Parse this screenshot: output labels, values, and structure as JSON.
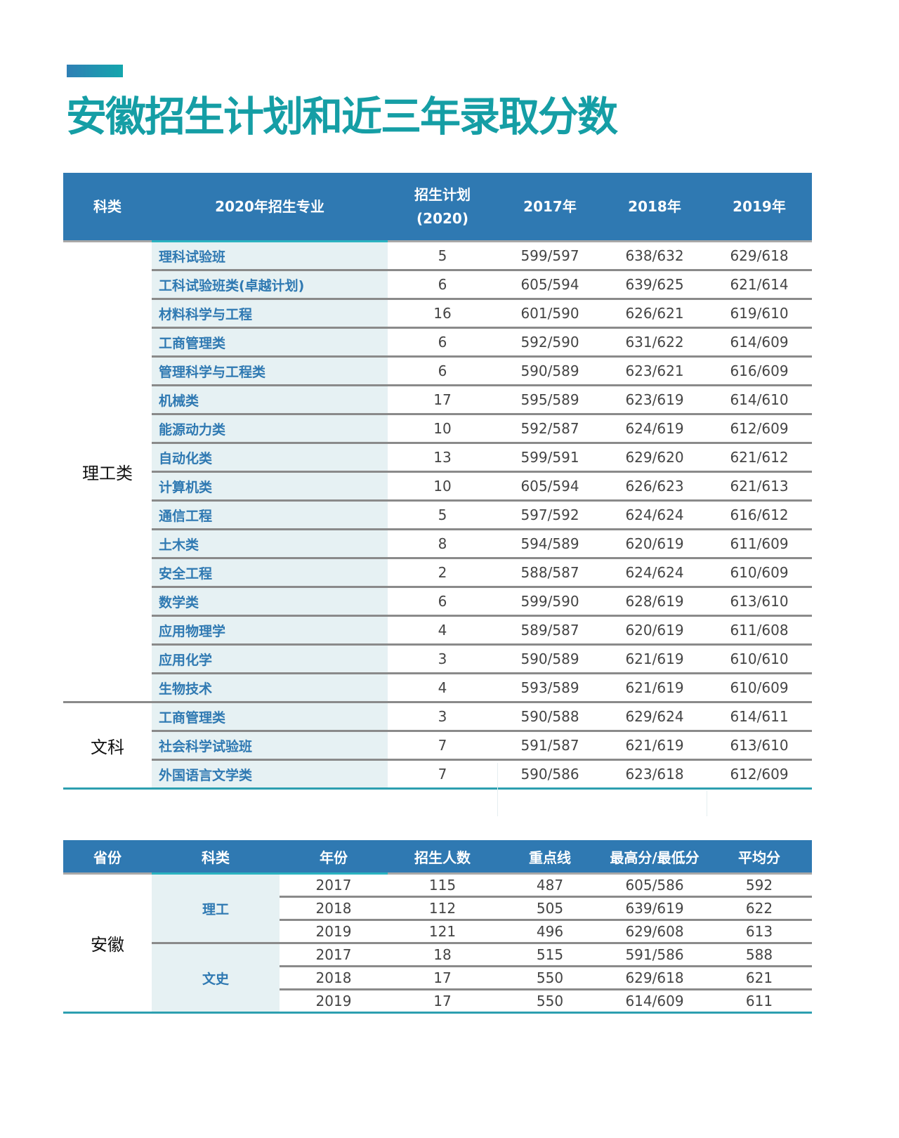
{
  "page": {
    "title": "安徽招生计划和近三年录取分数",
    "accent_color": "#159ea5",
    "header_color": "#2f79b2"
  },
  "plan_table": {
    "headers": [
      "科类",
      "2020年招生专业",
      "招生计划",
      "(2020)",
      "2017年",
      "2018年",
      "2019年"
    ],
    "groups": [
      {
        "category": "理工类",
        "rows": [
          {
            "major": "理科试验班",
            "plan": "5",
            "y2017": "599/597",
            "y2018": "638/632",
            "y2019": "629/618"
          },
          {
            "major": "工科试验班类(卓越计划)",
            "plan": "6",
            "y2017": "605/594",
            "y2018": "639/625",
            "y2019": "621/614"
          },
          {
            "major": "材料科学与工程",
            "plan": "16",
            "y2017": "601/590",
            "y2018": "626/621",
            "y2019": "619/610"
          },
          {
            "major": "工商管理类",
            "plan": "6",
            "y2017": "592/590",
            "y2018": "631/622",
            "y2019": "614/609"
          },
          {
            "major": "管理科学与工程类",
            "plan": "6",
            "y2017": "590/589",
            "y2018": "623/621",
            "y2019": "616/609"
          },
          {
            "major": "机械类",
            "plan": "17",
            "y2017": "595/589",
            "y2018": "623/619",
            "y2019": "614/610"
          },
          {
            "major": "能源动力类",
            "plan": "10",
            "y2017": "592/587",
            "y2018": "624/619",
            "y2019": "612/609"
          },
          {
            "major": "自动化类",
            "plan": "13",
            "y2017": "599/591",
            "y2018": "629/620",
            "y2019": "621/612"
          },
          {
            "major": "计算机类",
            "plan": "10",
            "y2017": "605/594",
            "y2018": "626/623",
            "y2019": "621/613"
          },
          {
            "major": "通信工程",
            "plan": "5",
            "y2017": "597/592",
            "y2018": "624/624",
            "y2019": "616/612"
          },
          {
            "major": "土木类",
            "plan": "8",
            "y2017": "594/589",
            "y2018": "620/619",
            "y2019": "611/609"
          },
          {
            "major": "安全工程",
            "plan": "2",
            "y2017": "588/587",
            "y2018": "624/624",
            "y2019": "610/609"
          },
          {
            "major": "数学类",
            "plan": "6",
            "y2017": "599/590",
            "y2018": "628/619",
            "y2019": "613/610"
          },
          {
            "major": "应用物理学",
            "plan": "4",
            "y2017": "589/587",
            "y2018": "620/619",
            "y2019": "611/608"
          },
          {
            "major": "应用化学",
            "plan": "3",
            "y2017": "590/589",
            "y2018": "621/619",
            "y2019": "610/610"
          },
          {
            "major": "生物技术",
            "plan": "4",
            "y2017": "593/589",
            "y2018": "621/619",
            "y2019": "610/609"
          }
        ]
      },
      {
        "category": "文科",
        "rows": [
          {
            "major": "工商管理类",
            "plan": "3",
            "y2017": "590/588",
            "y2018": "629/624",
            "y2019": "614/611"
          },
          {
            "major": "社会科学试验班",
            "plan": "7",
            "y2017": "591/587",
            "y2018": "621/619",
            "y2019": "613/610"
          },
          {
            "major": "外国语言文学类",
            "plan": "7",
            "y2017": "590/586",
            "y2018": "623/618",
            "y2019": "612/609"
          }
        ]
      }
    ]
  },
  "history_table": {
    "headers": [
      "省份",
      "科类",
      "年份",
      "招生人数",
      "重点线",
      "最高分/最低分",
      "平均分"
    ],
    "province": "安徽",
    "groups": [
      {
        "type": "理工",
        "rows": [
          {
            "year": "2017",
            "enrolled": "115",
            "key_line": "487",
            "high_low": "605/586",
            "avg": "592"
          },
          {
            "year": "2018",
            "enrolled": "112",
            "key_line": "505",
            "high_low": "639/619",
            "avg": "622"
          },
          {
            "year": "2019",
            "enrolled": "121",
            "key_line": "496",
            "high_low": "629/608",
            "avg": "613"
          }
        ]
      },
      {
        "type": "文史",
        "rows": [
          {
            "year": "2017",
            "enrolled": "18",
            "key_line": "515",
            "high_low": "591/586",
            "avg": "588"
          },
          {
            "year": "2018",
            "enrolled": "17",
            "key_line": "550",
            "high_low": "629/618",
            "avg": "621"
          },
          {
            "year": "2019",
            "enrolled": "17",
            "key_line": "550",
            "high_low": "614/609",
            "avg": "611"
          }
        ]
      }
    ]
  }
}
